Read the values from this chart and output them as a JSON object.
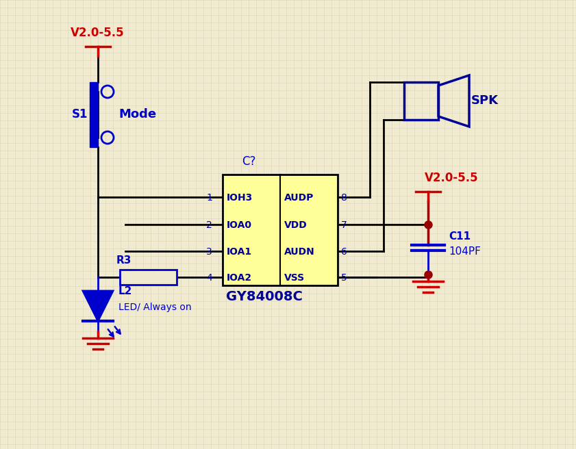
{
  "bg_color": "#f0ead0",
  "grid_color": "#ddd5b0",
  "blue": "#0000cc",
  "dark_blue": "#000099",
  "red": "#cc0000",
  "dark_red": "#990000",
  "black": "#000000",
  "yellow_fill": "#ffff99",
  "chip_label": "GY84008C",
  "chip_ref": "C?",
  "chip_pins_left": [
    "IOH3",
    "IOA0",
    "IOA1",
    "IOA2"
  ],
  "chip_pins_right": [
    "AUDP",
    "VDD",
    "AUDN",
    "VSS"
  ],
  "chip_pin_nums_left": [
    "1",
    "2",
    "3",
    "4"
  ],
  "chip_pin_nums_right": [
    "8",
    "7",
    "6",
    "5"
  ],
  "switch_label": "S1",
  "switch_name": "Mode",
  "vcc_label": "V2.0-5.5",
  "vcc_label2": "V2.0-5.5",
  "spk_label": "SPK",
  "resistor_label": "R3",
  "led_label": "L2",
  "led_desc": "LED/ Always on",
  "cap_label": "C11",
  "cap_value": "104PF"
}
